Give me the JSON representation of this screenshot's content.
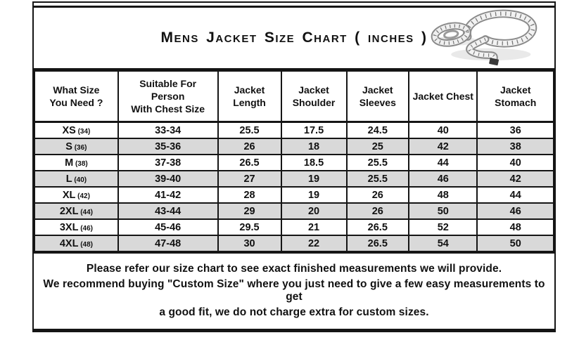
{
  "title": "Mens Jacket Size Chart ( inches )",
  "table": {
    "headers": [
      "What Size\nYou Need ?",
      "Suitable For\nPerson\nWith Chest Size",
      "Jacket\nLength",
      "Jacket\nShoulder",
      "Jacket\nSleeves",
      "Jacket Chest",
      "Jacket\nStomach"
    ],
    "rows": [
      {
        "size": "XS",
        "size_note": "(34)",
        "values": [
          "33-34",
          "25.5",
          "17.5",
          "24.5",
          "40",
          "36"
        ]
      },
      {
        "size": "S",
        "size_note": "(36)",
        "values": [
          "35-36",
          "26",
          "18",
          "25",
          "42",
          "38"
        ]
      },
      {
        "size": "M",
        "size_note": "(38)",
        "values": [
          "37-38",
          "26.5",
          "18.5",
          "25.5",
          "44",
          "40"
        ]
      },
      {
        "size": "L",
        "size_note": "(40)",
        "values": [
          "39-40",
          "27",
          "19",
          "25.5",
          "46",
          "42"
        ]
      },
      {
        "size": "XL",
        "size_note": "(42)",
        "values": [
          "41-42",
          "28",
          "19",
          "26",
          "48",
          "44"
        ]
      },
      {
        "size": "2XL",
        "size_note": "(44)",
        "values": [
          "43-44",
          "29",
          "20",
          "26",
          "50",
          "46"
        ]
      },
      {
        "size": "3XL",
        "size_note": "(46)",
        "values": [
          "45-46",
          "29.5",
          "21",
          "26.5",
          "52",
          "48"
        ]
      },
      {
        "size": "4XL",
        "size_note": "(48)",
        "values": [
          "47-48",
          "30",
          "22",
          "26.5",
          "54",
          "50"
        ]
      }
    ]
  },
  "notes": {
    "line1": "Please refer our size chart to see exact finished measurements we will provide.",
    "line2_prefix": "We recommend buying ",
    "line2_bold": "\"Custom Size\"",
    "line2_suffix": " where you just need to give a few easy measurements to get",
    "line3": "a good fit, we do not charge extra for custom sizes."
  },
  "colors": {
    "border": "#151515",
    "row_alt": "#d9d9d9",
    "text": "#111111"
  }
}
